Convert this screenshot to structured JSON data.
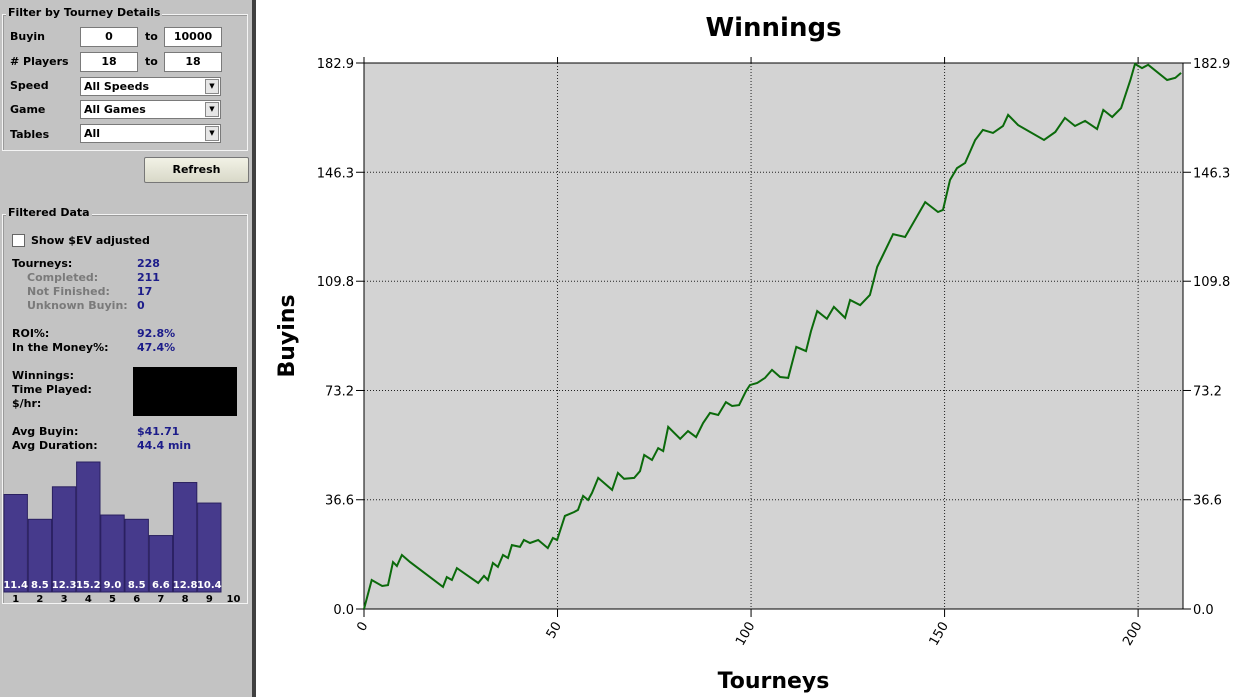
{
  "filter": {
    "title": "Filter by Tourney Details",
    "ranges": [
      {
        "label": "Buyin",
        "from": "0",
        "sep": "to",
        "to": "10000"
      },
      {
        "label": "# Players",
        "from": "18",
        "sep": "to",
        "to": "18"
      }
    ],
    "selects": [
      {
        "label": "Speed",
        "value": "All Speeds"
      },
      {
        "label": "Game",
        "value": "All Games"
      },
      {
        "label": "Tables",
        "value": "All"
      }
    ],
    "button": "Refresh"
  },
  "filtered": {
    "title": "Filtered Data",
    "checkbox": "Show $EV adjusted",
    "stats": [
      {
        "label": "Tourneys:",
        "value": "228"
      },
      {
        "label": "Completed:",
        "value": "211"
      },
      {
        "label": "Not Finished:",
        "value": "17"
      },
      {
        "label": "Unknown Buyin:",
        "value": "0"
      },
      {
        "label": "ROI%:",
        "value": "92.8%"
      },
      {
        "label": "In the Money%:",
        "value": "47.4%"
      }
    ],
    "hidden_labels": [
      "Winnings:",
      "Time Played:",
      "$/hr:"
    ],
    "averages": [
      {
        "label": "Avg Buyin:",
        "value": "$41.71"
      },
      {
        "label": "Avg Duration:",
        "value": "44.4 min"
      }
    ]
  },
  "chart_data": [
    {
      "type": "line",
      "title": "Winnings",
      "x_label": "Tourneys",
      "y_label": "Buyins",
      "color": "#0b6a0b",
      "x": [
        0,
        2,
        4.7,
        6.2,
        7.5,
        8.5,
        9.8,
        11.9,
        20.4,
        21.4,
        22.7,
        24,
        29.5,
        31,
        32,
        33.3,
        34.6,
        35.9,
        37.2,
        38.2,
        40.3,
        41.3,
        42.9,
        45,
        47.5,
        48.8,
        49.9,
        51.9,
        54.3,
        55.3,
        56.6,
        57.9,
        58.9,
        60.5,
        64.1,
        65.6,
        67.2,
        69.8,
        71.3,
        72.4,
        74.4,
        76,
        77.3,
        78.6,
        81.7,
        83.7,
        85.8,
        87.6,
        89.4,
        91.5,
        93.5,
        95.1,
        96.9,
        98.7,
        99.7,
        101.6,
        103.6,
        105.4,
        107.5,
        109.6,
        111.7,
        114.2,
        115.5,
        117.1,
        119.6,
        121.4,
        124.3,
        125.6,
        128.2,
        130.7,
        132.6,
        134.1,
        136.7,
        139.8,
        145,
        148.3,
        149.6,
        151.4,
        153.2,
        155.3,
        157.9,
        159.9,
        162.5,
        165.1,
        166.4,
        169,
        175.7,
        178.6,
        181.1,
        183.7,
        186.3,
        189.4,
        191,
        193.3,
        195.6,
        198,
        199.2,
        201,
        202.6,
        207.5,
        209.6,
        211.1
      ],
      "values": [
        0,
        9.7,
        7.7,
        8,
        15.7,
        14.4,
        18.1,
        15.7,
        7.4,
        10.7,
        9.7,
        13.7,
        8.7,
        11.1,
        9.7,
        15.4,
        14.1,
        18.1,
        17.1,
        21.4,
        20.8,
        23.1,
        22.1,
        23.1,
        20.4,
        23.8,
        23.1,
        31.2,
        32.5,
        33.2,
        37.9,
        36.5,
        38.9,
        43.9,
        39.9,
        45.6,
        43.6,
        43.9,
        46.2,
        51.6,
        49.9,
        53.9,
        52.9,
        61,
        57,
        59.6,
        57.6,
        62.3,
        65.7,
        65,
        69.3,
        68,
        68.3,
        73,
        75,
        75.7,
        77.4,
        80.1,
        77.7,
        77.4,
        87.8,
        86.4,
        93.1,
        99.8,
        97.2,
        101.2,
        97.5,
        103.5,
        101.8,
        105.2,
        114.6,
        118.6,
        125.6,
        124.6,
        136.3,
        133,
        133.7,
        143.7,
        147.7,
        149.4,
        157.1,
        160.5,
        159.5,
        161.8,
        165.5,
        162.1,
        157.1,
        159.8,
        164.5,
        161.8,
        163.5,
        160.8,
        167.2,
        164.8,
        167.8,
        177.2,
        182.6,
        181.2,
        182.3,
        177.2,
        177.9,
        179.6
      ],
      "xlim": [
        0,
        211.6
      ],
      "xticks": [
        0,
        50,
        100,
        150,
        200
      ],
      "ylim": [
        0,
        182.9
      ],
      "yticks": [
        {
          "value": 0,
          "label": "0.0"
        },
        36.6,
        73.2,
        109.8,
        146.3,
        182.9
      ],
      "grid": true
    },
    {
      "type": "bar",
      "categories": [
        "1",
        "2",
        "3",
        "4",
        "5",
        "6",
        "7",
        "8",
        "9",
        "10"
      ],
      "values": [
        11.4,
        8.5,
        12.3,
        15.2,
        9.0,
        8.5,
        6.6,
        12.8,
        10.4,
        null
      ],
      "value_labels": [
        "11.4",
        "8.5",
        "12.3",
        "15.2",
        "9.0",
        "8.5",
        "6.6",
        "12.8",
        "10.4",
        null
      ],
      "color": "#463a8c"
    }
  ]
}
